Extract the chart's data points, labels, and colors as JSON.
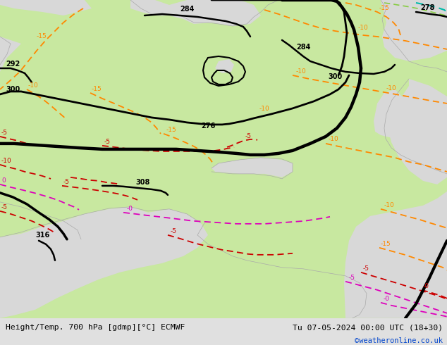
{
  "title_left": "Height/Temp. 700 hPa [gdmp][°C] ECMWF",
  "title_right": "Tu 07-05-2024 00:00 UTC (18+30)",
  "copyright": "©weatheronline.co.uk",
  "bg_land": "#c8e8a0",
  "bg_sea": "#d8d8d8",
  "bg_outer": "#e0e0e0",
  "footer_bg": "#cccccc",
  "orange": "#FF8800",
  "red": "#CC0000",
  "pink": "#DD00BB",
  "teal": "#00BBAA",
  "black": "#000000",
  "limegreen": "#90c840"
}
